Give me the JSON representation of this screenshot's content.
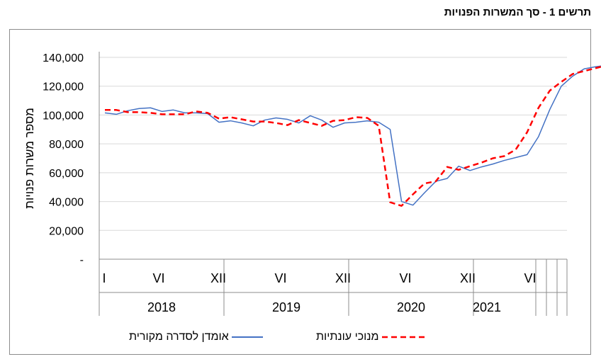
{
  "title": "תרשים 1 - סך המשרות הפנויות",
  "chart_data": {
    "type": "line",
    "ylabel": "מספר משרות פנויות",
    "ylim": [
      0,
      140000
    ],
    "yticks": [
      0,
      20000,
      40000,
      60000,
      80000,
      100000,
      120000,
      140000
    ],
    "ytick_labels": [
      "-",
      "20,000",
      "40,000",
      "60,000",
      "80,000",
      "100,000",
      "120,000",
      "140,000"
    ],
    "grid": true,
    "legend_position": "bottom",
    "years": [
      "2018",
      "2019",
      "2020",
      "2021"
    ],
    "month_tick_labels": [
      "I",
      "VI",
      "XII",
      "VI",
      "XII",
      "VI",
      "XII",
      "VI"
    ],
    "series": [
      {
        "name": "אומדן לסדרה מקורית",
        "color": "#4472c4",
        "style": "solid",
        "values": [
          101500,
          100500,
          103000,
          104500,
          105000,
          102500,
          103500,
          101500,
          101500,
          101000,
          95000,
          96000,
          94500,
          92500,
          96500,
          98000,
          97000,
          94500,
          99500,
          96500,
          91500,
          94500,
          95000,
          96000,
          95000,
          90000,
          40000,
          37500,
          46000,
          54000,
          56000,
          64500,
          61500,
          64000,
          66000,
          68500,
          70500,
          72500,
          85000,
          104000,
          120000,
          127000,
          132000,
          133500,
          134500,
          136000
        ]
      },
      {
        "name": "מנוכי עונתיות",
        "color": "#ff0000",
        "style": "dashed",
        "values": [
          103500,
          103500,
          102000,
          102000,
          101500,
          100500,
          100500,
          100500,
          102500,
          101500,
          97500,
          98500,
          97000,
          95500,
          95500,
          94500,
          93000,
          96500,
          94500,
          92500,
          96000,
          96500,
          98500,
          98000,
          92500,
          39500,
          37000,
          45000,
          52500,
          54000,
          64000,
          62000,
          64500,
          67000,
          70000,
          71500,
          76000,
          88000,
          105000,
          117000,
          123000,
          128500,
          130500,
          132500,
          134500,
          136000
        ]
      }
    ]
  }
}
